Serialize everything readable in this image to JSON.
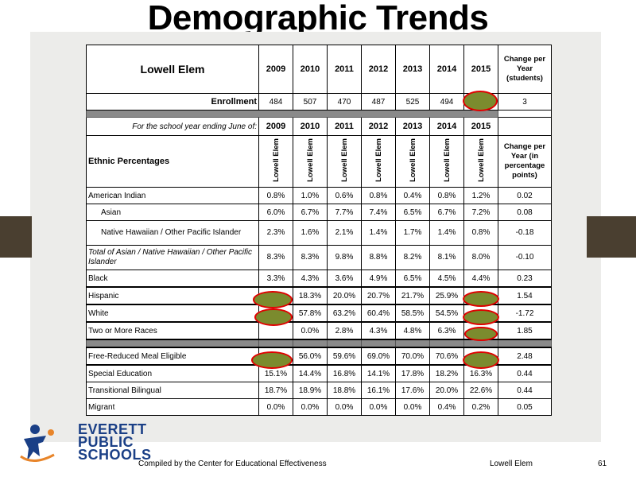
{
  "title": "Demographic Trends",
  "table": {
    "school": "Lowell Elem",
    "years": [
      "2009",
      "2010",
      "2011",
      "2012",
      "2013",
      "2014",
      "2015"
    ],
    "change_students_label": "Change per Year (students)",
    "enrollment": {
      "label": "Enrollment",
      "values": [
        "484",
        "507",
        "470",
        "487",
        "525",
        "494",
        ""
      ],
      "change": "3"
    },
    "school_year_label": "For the school year ending June of:",
    "ethnic_label": "Ethnic Percentages",
    "column_school": "Lowell Elem",
    "change_points_label": "Change per Year (in percentage points)",
    "rows": [
      {
        "label": "American Indian",
        "values": [
          "0.8%",
          "1.0%",
          "0.6%",
          "0.8%",
          "0.4%",
          "0.8%",
          "1.2%"
        ],
        "change": "0.02"
      },
      {
        "label": "Asian",
        "values": [
          "6.0%",
          "6.7%",
          "7.7%",
          "7.4%",
          "6.5%",
          "6.7%",
          "7.2%"
        ],
        "change": "0.08"
      },
      {
        "label": "Native Hawaiian / Other Pacific Islander",
        "values": [
          "2.3%",
          "1.6%",
          "2.1%",
          "1.4%",
          "1.7%",
          "1.4%",
          "0.8%"
        ],
        "change": "-0.18"
      },
      {
        "label": "Total of Asian / Native Hawaiian / Other Pacific Islander",
        "values": [
          "8.3%",
          "8.3%",
          "9.8%",
          "8.8%",
          "8.2%",
          "8.1%",
          "8.0%"
        ],
        "change": "-0.10"
      },
      {
        "label": "Black",
        "values": [
          "3.3%",
          "4.3%",
          "3.6%",
          "4.9%",
          "6.5%",
          "4.5%",
          "4.4%"
        ],
        "change": "0.23"
      },
      {
        "label": "Hispanic",
        "values": [
          "",
          "18.3%",
          "20.0%",
          "20.7%",
          "21.7%",
          "25.9%",
          ""
        ],
        "change": "1.54"
      },
      {
        "label": "White",
        "values": [
          "",
          "57.8%",
          "63.2%",
          "60.4%",
          "58.5%",
          "54.5%",
          ""
        ],
        "change": "-1.72"
      },
      {
        "label": "Two or More Races",
        "values": [
          "",
          "0.0%",
          "2.8%",
          "4.3%",
          "4.8%",
          "6.3%",
          ""
        ],
        "change": "1.85"
      },
      {
        "label": "Free-Reduced Meal Eligible",
        "values": [
          "",
          "56.0%",
          "59.6%",
          "69.0%",
          "70.0%",
          "70.6%",
          ""
        ],
        "change": "2.48"
      },
      {
        "label": "Special Education",
        "values": [
          "15.1%",
          "14.4%",
          "16.8%",
          "14.1%",
          "17.8%",
          "18.2%",
          "16.3%"
        ],
        "change": "0.44"
      },
      {
        "label": "Transitional Bilingual",
        "values": [
          "18.7%",
          "18.9%",
          "18.8%",
          "16.1%",
          "17.6%",
          "20.0%",
          "22.6%"
        ],
        "change": "0.44"
      },
      {
        "label": "Migrant",
        "values": [
          "0.0%",
          "0.0%",
          "0.0%",
          "0.0%",
          "0.0%",
          "0.4%",
          "0.2%"
        ],
        "change": "0.05"
      }
    ]
  },
  "logo": {
    "line1": "EVERETT",
    "line2": "PUBLIC",
    "line3": "SCHOOLS"
  },
  "footer": {
    "credit": "Compiled by the Center for Educational Effectiveness",
    "school": "Lowell Elem",
    "page": "61"
  },
  "colors": {
    "oval_fill": "#7b8b2e",
    "oval_border": "#e00000",
    "divider": "#8a8a8a",
    "tab": "#4a3f30",
    "logo_blue": "#1a3f86",
    "logo_orange": "#e8852a"
  }
}
